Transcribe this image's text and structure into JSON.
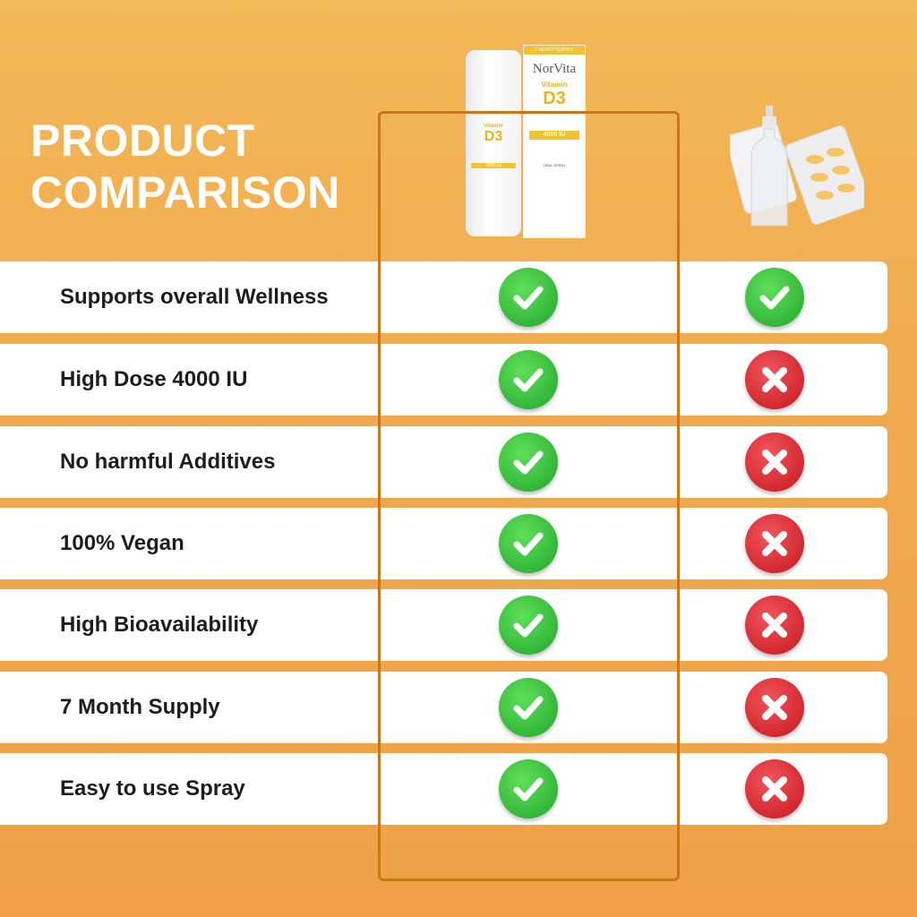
{
  "title_line1": "PRODUCT",
  "title_line2": "COMPARISON",
  "product": {
    "supply": "7 MONTH SUPPLY",
    "brand": "NorVita",
    "vitamin": "Vitamin",
    "name": "D3",
    "dose": "4000 IU",
    "form": "ORAL SPRAY"
  },
  "competitor": {
    "image": "pills-blister-and-spray-bottle"
  },
  "colors": {
    "check": "#2fb535",
    "cross": "#d8242b",
    "frame": "#c97716",
    "background": "#f0aa4d"
  },
  "rows": [
    {
      "label": "Supports overall Wellness",
      "norvita": true,
      "other": true
    },
    {
      "label": "High Dose 4000 IU",
      "norvita": true,
      "other": false
    },
    {
      "label": "No harmful Additives",
      "norvita": true,
      "other": false
    },
    {
      "label": "100% Vegan",
      "norvita": true,
      "other": false
    },
    {
      "label": "High Bioavailability",
      "norvita": true,
      "other": false
    },
    {
      "label": "7 Month Supply",
      "norvita": true,
      "other": false
    },
    {
      "label": "Easy to use Spray",
      "norvita": true,
      "other": false
    }
  ]
}
